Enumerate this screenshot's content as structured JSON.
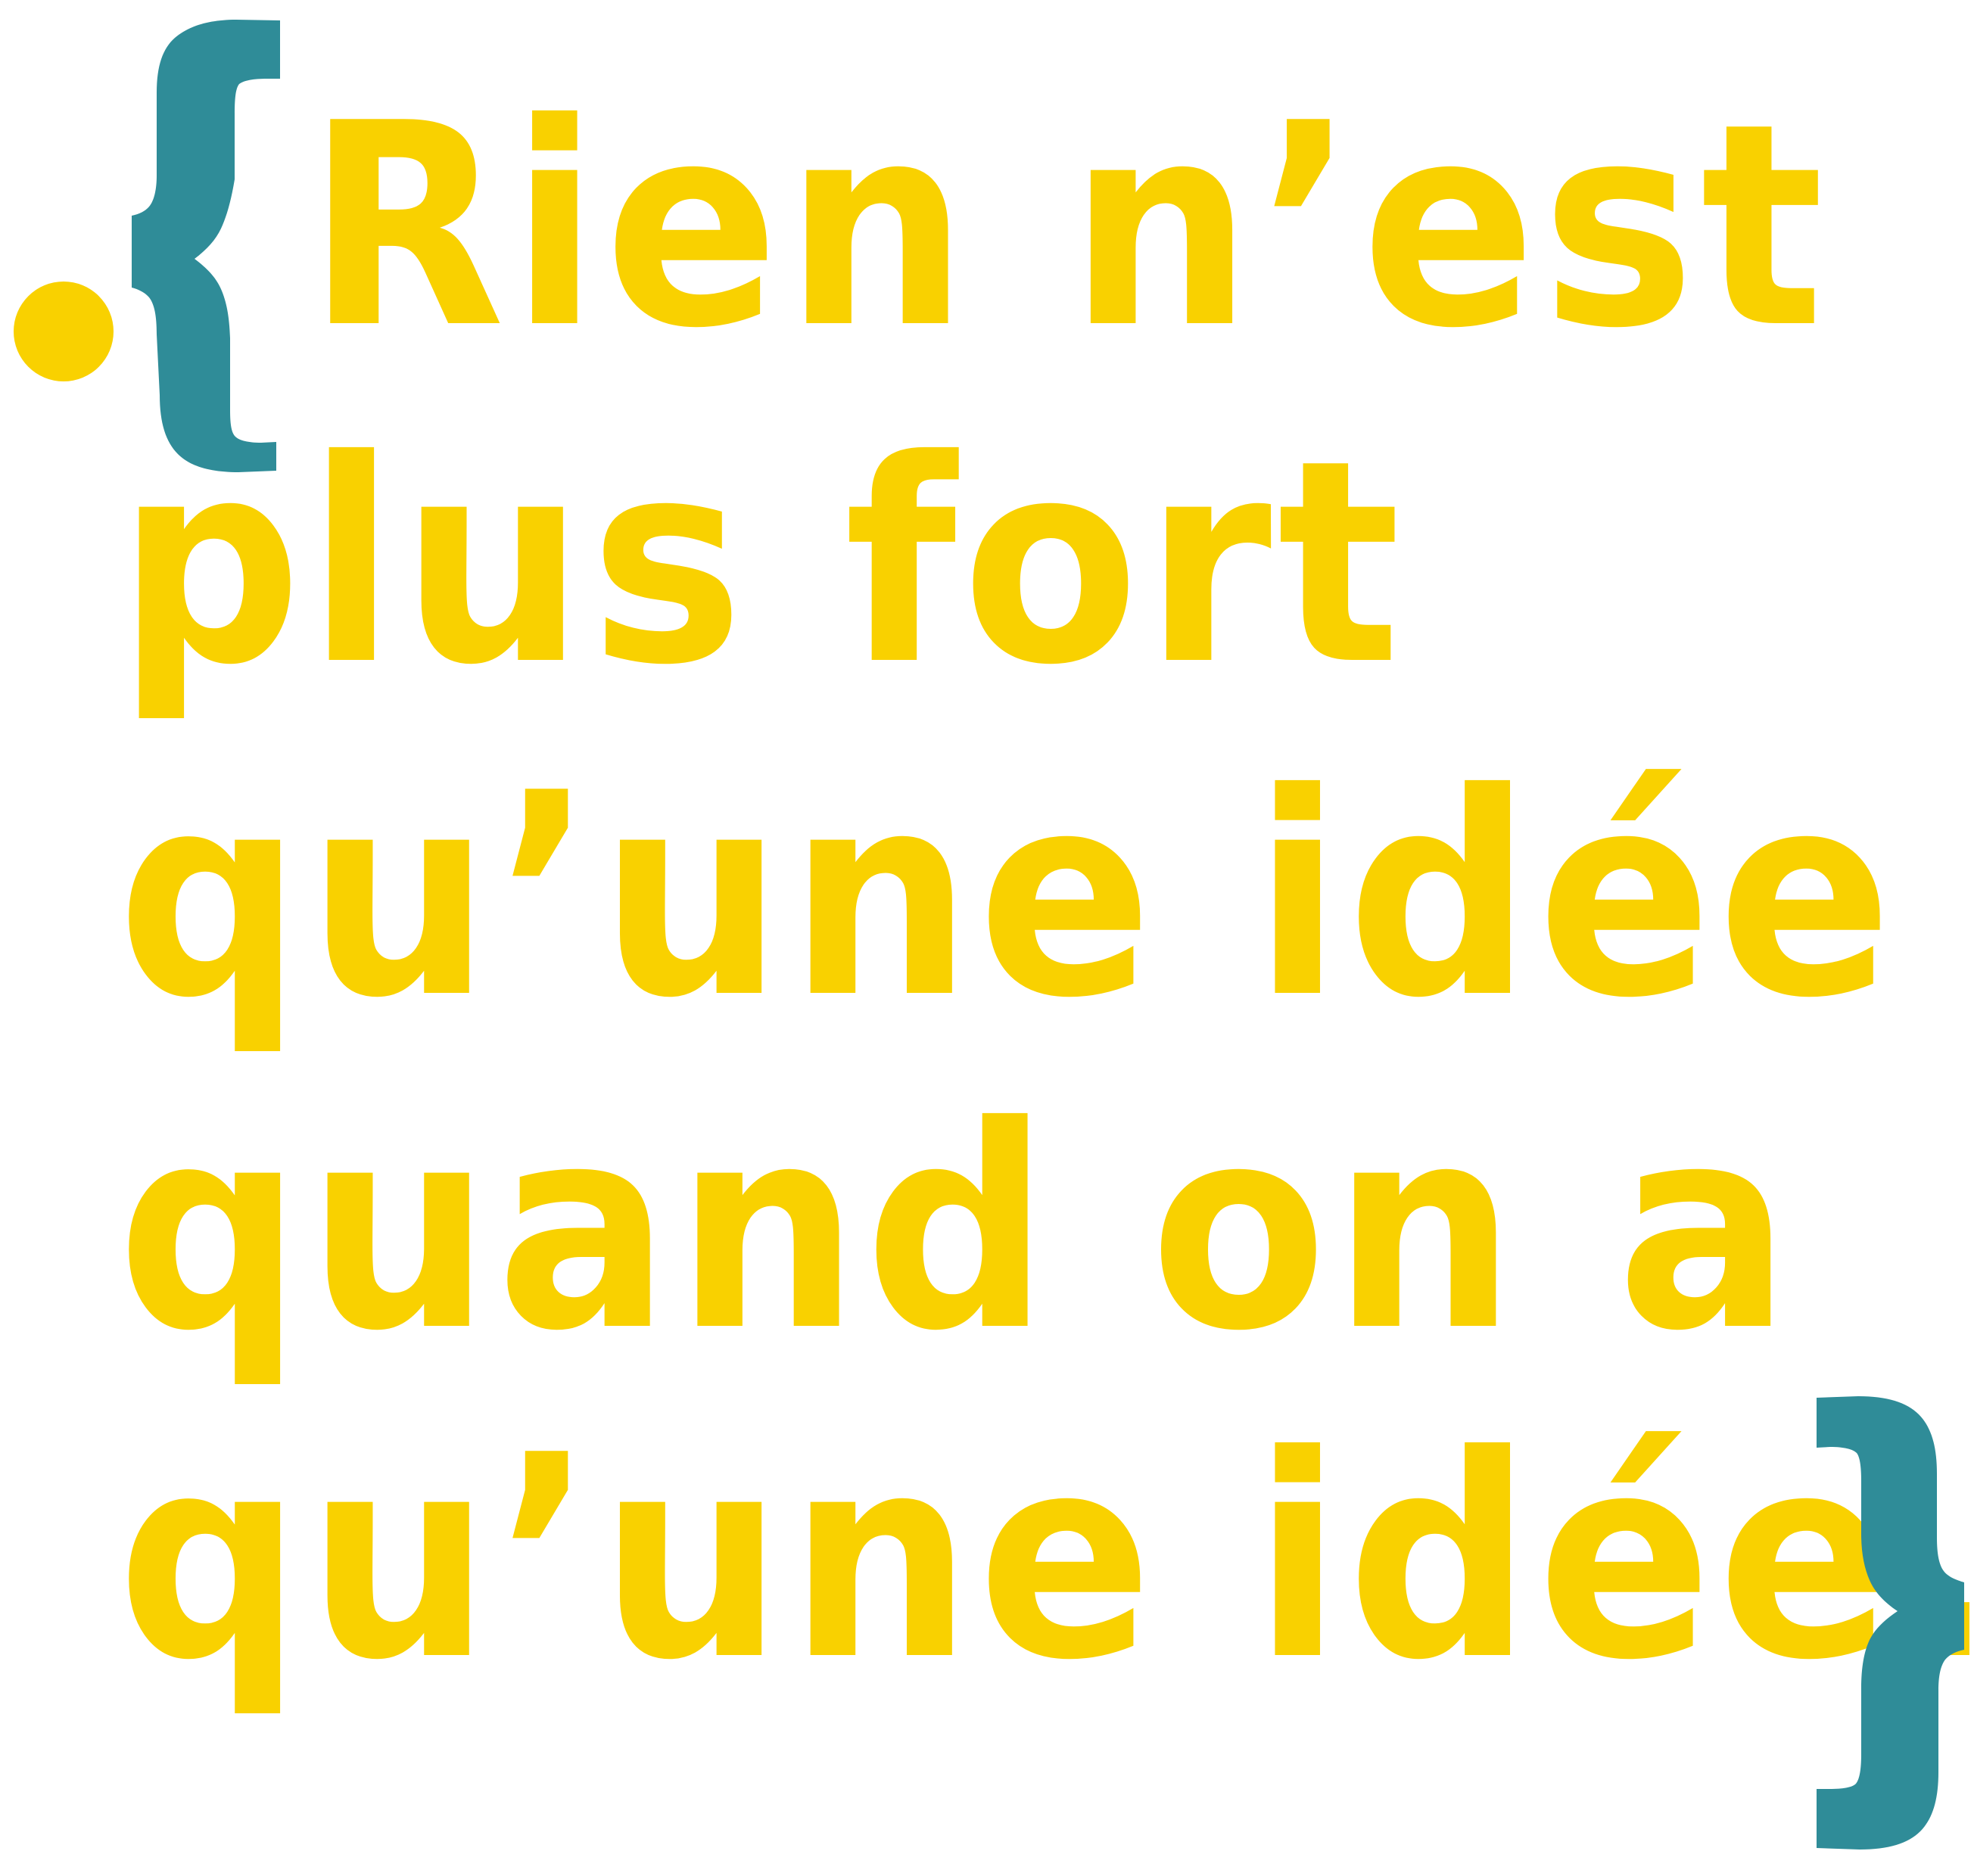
{
  "quote": {
    "open_brace": "{",
    "close_brace": "}",
    "lines": [
      "Rien n’est",
      "plus fort",
      "qu’une idée",
      "quand on a",
      "qu’une idée."
    ]
  },
  "colors": {
    "text": "#F9D100",
    "brace": "#2F8C98",
    "background": "#FFFFFF"
  }
}
